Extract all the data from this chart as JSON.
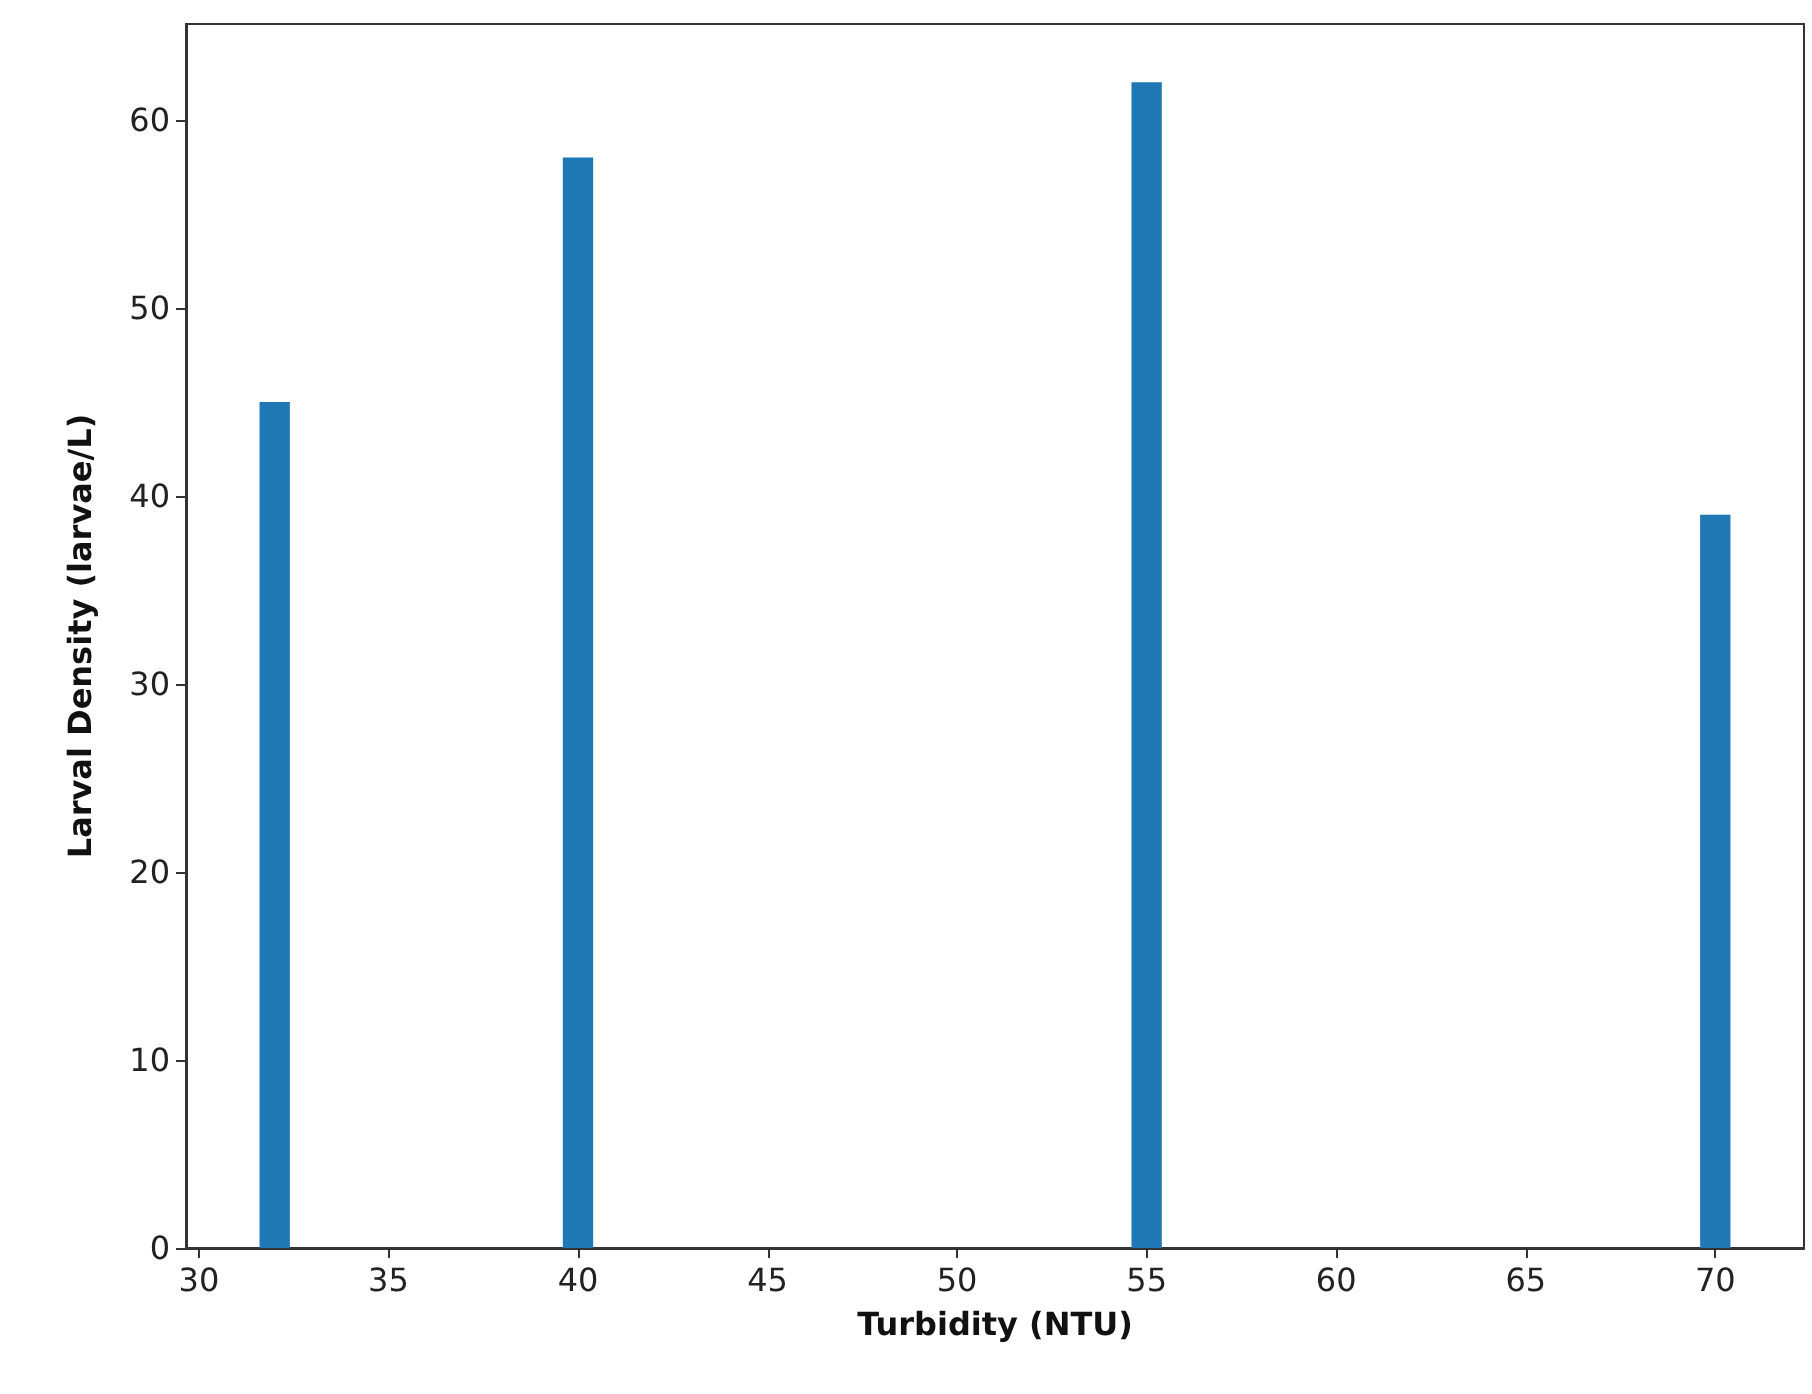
{
  "chart_data": {
    "type": "bar",
    "xlabel": "Turbidity (NTU)",
    "ylabel": "Larval Density (larvae/L)",
    "x": [
      32,
      40,
      55,
      70
    ],
    "values": [
      45,
      58,
      62,
      39
    ],
    "color": "#1f77b4",
    "xlim": [
      29.66,
      72.34
    ],
    "xticks": [
      30,
      35,
      40,
      45,
      50,
      55,
      60,
      65,
      70
    ],
    "ylim": [
      0,
      65.1
    ],
    "yticks": [
      0,
      10,
      20,
      30,
      40,
      50,
      60
    ],
    "grid": false
  }
}
